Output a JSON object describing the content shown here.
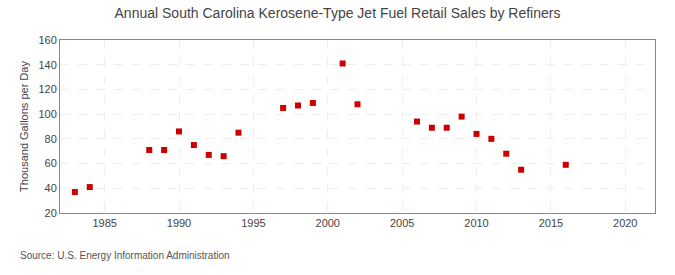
{
  "chart_data": {
    "type": "scatter",
    "title": "Annual South Carolina Kerosene-Type Jet Fuel Retail Sales by Refiners",
    "ylabel": "Thousand Gallons per Day",
    "annotation": "Source: U.S. Energy Information Administration",
    "x": [
      1983,
      1984,
      1988,
      1989,
      1990,
      1991,
      1992,
      1993,
      1994,
      1997,
      1998,
      1999,
      2001,
      2002,
      2006,
      2007,
      2008,
      2009,
      2010,
      2011,
      2012,
      2013,
      2016
    ],
    "values": [
      37,
      41,
      71,
      71,
      86,
      75,
      67,
      66,
      85,
      105,
      107,
      109,
      141,
      108,
      94,
      89,
      89,
      98,
      84,
      80,
      68,
      55,
      59
    ],
    "color": "#cc0000",
    "marker": "square",
    "xlim": [
      1982,
      2022
    ],
    "ylim": [
      20,
      160
    ],
    "xticks": [
      1985,
      1990,
      1995,
      2000,
      2005,
      2010,
      2015,
      2020
    ],
    "yticks": [
      20,
      40,
      60,
      80,
      100,
      120,
      140,
      160
    ],
    "grid": true
  }
}
